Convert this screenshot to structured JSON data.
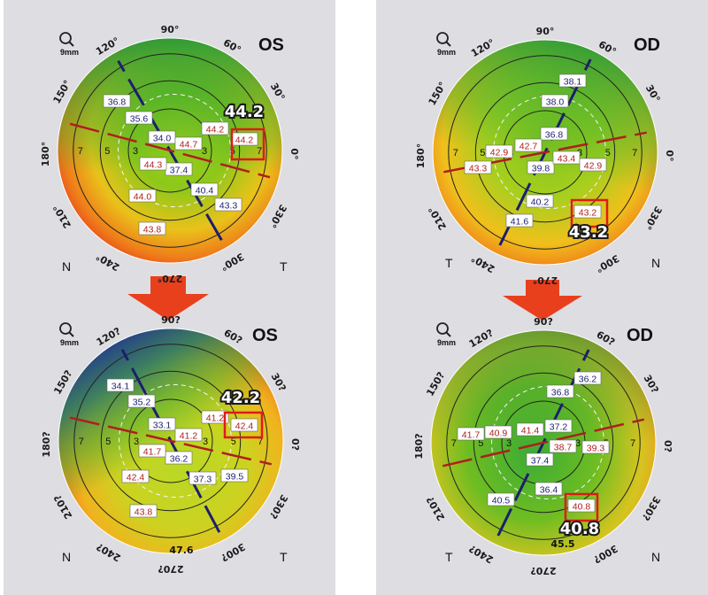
{
  "colors": {
    "steep": "#b01e1e",
    "flat": "#1b1f6e",
    "arrow": "#e8401d",
    "highlight": "#e01a1a"
  },
  "scale_label": "9mm",
  "maps": [
    {
      "id": "os-before",
      "eye": "OS",
      "nasal_side": "N",
      "temporal_side": "T",
      "palette": "before-os",
      "angles": [
        "90°",
        "60°",
        "30°",
        "0°",
        "330°",
        "300°",
        "270°",
        "240°",
        "210°",
        "180°",
        "150°",
        "120°"
      ],
      "ring_labels": [
        "3",
        "5",
        "7",
        "3",
        "5",
        "7"
      ],
      "labels": [
        {
          "text": "36.8",
          "type": "flat"
        },
        {
          "text": "35.6",
          "type": "flat"
        },
        {
          "text": "34.0",
          "type": "flat"
        },
        {
          "text": "37.4",
          "type": "flat"
        },
        {
          "text": "40.4",
          "type": "flat"
        },
        {
          "text": "43.3",
          "type": "flat"
        },
        {
          "text": "44.2",
          "type": "steep"
        },
        {
          "text": "44.7",
          "type": "steep"
        },
        {
          "text": "44.3",
          "type": "steep"
        },
        {
          "text": "44.0",
          "type": "steep"
        },
        {
          "text": "43.8",
          "type": "steep"
        },
        {
          "text": "44.2",
          "type": "steep"
        }
      ],
      "highlight_value": "44.2",
      "bottom_value": ""
    },
    {
      "id": "os-after",
      "eye": "OS",
      "nasal_side": "N",
      "temporal_side": "T",
      "palette": "after-os",
      "angles": [
        "90?",
        "60?",
        "30?",
        "0?",
        "330?",
        "300?",
        "270?",
        "240?",
        "210?",
        "180?",
        "150?",
        "120?"
      ],
      "ring_labels": [
        "3",
        "5",
        "7",
        "3",
        "5",
        "7"
      ],
      "labels": [
        {
          "text": "34.1",
          "type": "flat"
        },
        {
          "text": "35.2",
          "type": "flat"
        },
        {
          "text": "33.1",
          "type": "flat"
        },
        {
          "text": "36.2",
          "type": "flat"
        },
        {
          "text": "37.3",
          "type": "flat"
        },
        {
          "text": "39.5",
          "type": "flat"
        },
        {
          "text": "41.2",
          "type": "steep"
        },
        {
          "text": "41.2",
          "type": "steep"
        },
        {
          "text": "41.7",
          "type": "steep"
        },
        {
          "text": "42.4",
          "type": "steep"
        },
        {
          "text": "43.8",
          "type": "steep"
        },
        {
          "text": "42.4",
          "type": "steep"
        }
      ],
      "highlight_value": "42.2",
      "bottom_value": "47.6"
    },
    {
      "id": "od-before",
      "eye": "OD",
      "nasal_side": "N",
      "temporal_side": "T",
      "palette": "before-od",
      "angles": [
        "90°",
        "60°",
        "30°",
        "0°",
        "330°",
        "300°",
        "270°",
        "240°",
        "210°",
        "180°",
        "150°",
        "120°"
      ],
      "ring_labels": [
        "3",
        "5",
        "7",
        "3",
        "5",
        "7"
      ],
      "labels": [
        {
          "text": "38.1",
          "type": "flat"
        },
        {
          "text": "38.0",
          "type": "flat"
        },
        {
          "text": "36.8",
          "type": "flat"
        },
        {
          "text": "39.8",
          "type": "flat"
        },
        {
          "text": "40.2",
          "type": "flat"
        },
        {
          "text": "41.6",
          "type": "flat"
        },
        {
          "text": "42.7",
          "type": "steep"
        },
        {
          "text": "42.9",
          "type": "steep"
        },
        {
          "text": "43.3",
          "type": "steep"
        },
        {
          "text": "43.4",
          "type": "steep"
        },
        {
          "text": "42.9",
          "type": "steep"
        },
        {
          "text": "43.2",
          "type": "steep"
        }
      ],
      "highlight_value": "43.2",
      "bottom_value": ""
    },
    {
      "id": "od-after",
      "eye": "OD",
      "nasal_side": "N",
      "temporal_side": "T",
      "palette": "after-od",
      "angles": [
        "90?",
        "60?",
        "30?",
        "0?",
        "330?",
        "300?",
        "270?",
        "240?",
        "210?",
        "180?",
        "150?",
        "120?"
      ],
      "ring_labels": [
        "3",
        "5",
        "7",
        "3",
        "5",
        "7"
      ],
      "labels": [
        {
          "text": "36.2",
          "type": "flat"
        },
        {
          "text": "36.8",
          "type": "flat"
        },
        {
          "text": "37.2",
          "type": "flat"
        },
        {
          "text": "37.4",
          "type": "flat"
        },
        {
          "text": "36.4",
          "type": "flat"
        },
        {
          "text": "40.5",
          "type": "flat"
        },
        {
          "text": "41.7",
          "type": "steep"
        },
        {
          "text": "40.9",
          "type": "steep"
        },
        {
          "text": "41.4",
          "type": "steep"
        },
        {
          "text": "38.7",
          "type": "steep"
        },
        {
          "text": "39.3",
          "type": "steep"
        },
        {
          "text": "40.8",
          "type": "steep"
        }
      ],
      "highlight_value": "40.8",
      "bottom_value": "45.5"
    }
  ]
}
